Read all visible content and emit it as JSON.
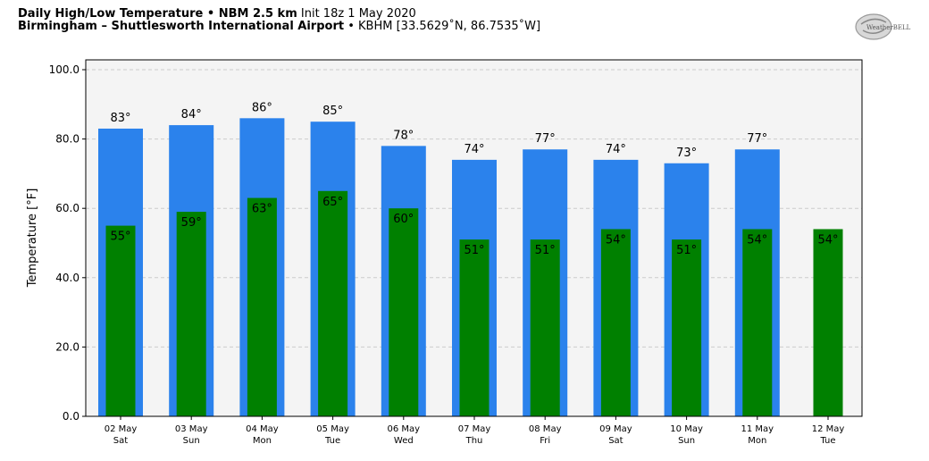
{
  "header": {
    "title_bold": "Daily High/Low Temperature • NBM 2.5 km",
    "title_init": "Init 18z 1 May 2020",
    "location_bold": "Birmingham – Shuttlesworth International Airport",
    "location_detail": "• KBHM [33.5629˚N, 86.7535˚W]"
  },
  "logo": {
    "text": "WeatherBELL",
    "icon": "weatherbell-logo-icon"
  },
  "colors": {
    "high": "#2b82ec",
    "low": "#008000",
    "plot_bg": "#f4f4f4",
    "grid": "#cccccc"
  },
  "chart_data": {
    "type": "bar",
    "ylabel": "Temperature [°F]",
    "ylim": [
      0,
      100
    ],
    "yticks": [
      "0.0",
      "20.0",
      "40.0",
      "60.0",
      "80.0",
      "100.0"
    ],
    "grid": true,
    "categories": [
      [
        "02 May",
        "Sat"
      ],
      [
        "03 May",
        "Sun"
      ],
      [
        "04 May",
        "Mon"
      ],
      [
        "05 May",
        "Tue"
      ],
      [
        "06 May",
        "Wed"
      ],
      [
        "07 May",
        "Thu"
      ],
      [
        "08 May",
        "Fri"
      ],
      [
        "09 May",
        "Sat"
      ],
      [
        "10 May",
        "Sun"
      ],
      [
        "11 May",
        "Mon"
      ],
      [
        "12 May",
        "Tue"
      ]
    ],
    "series": [
      {
        "values": [
          83,
          84,
          86,
          85,
          78,
          74,
          77,
          74,
          73,
          77,
          null
        ],
        "labels": [
          "83°",
          "84°",
          "86°",
          "85°",
          "78°",
          "74°",
          "77°",
          "74°",
          "73°",
          "77°",
          null
        ]
      },
      {
        "values": [
          55,
          59,
          63,
          65,
          60,
          51,
          51,
          54,
          51,
          54,
          54
        ],
        "labels": [
          "55°",
          "59°",
          "63°",
          "65°",
          "60°",
          "51°",
          "51°",
          "54°",
          "51°",
          "54°",
          "54°"
        ]
      }
    ]
  }
}
